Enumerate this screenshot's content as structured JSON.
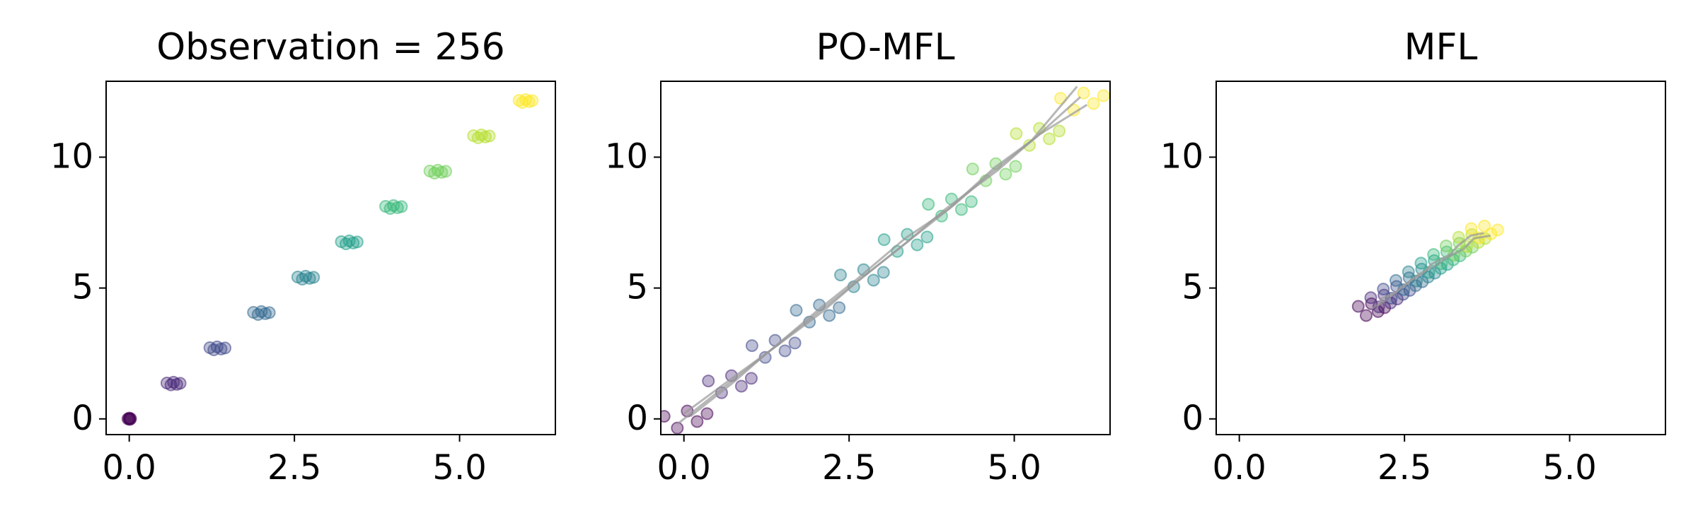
{
  "chart_data": [
    {
      "type": "scatter",
      "title": "Observation = 256",
      "xlim": [
        -0.35,
        6.45
      ],
      "ylim": [
        -0.6,
        12.9
      ],
      "xticks": [
        {
          "value": 0,
          "label": "0.0"
        },
        {
          "value": 2.5,
          "label": "2.5"
        },
        {
          "value": 5,
          "label": "5.0"
        }
      ],
      "yticks": [
        0,
        5,
        10
      ],
      "series": [
        {
          "color": "#440154",
          "x": [
            -0.02,
            0,
            0.01,
            0.02,
            0
          ],
          "y": [
            0,
            0.03,
            -0.02,
            0.01,
            0
          ]
        },
        {
          "color": "#482878",
          "x": [
            0.57,
            0.63,
            0.67,
            0.72,
            0.77
          ],
          "y": [
            1.37,
            1.3,
            1.4,
            1.32,
            1.36
          ]
        },
        {
          "color": "#3e4989",
          "x": [
            1.22,
            1.28,
            1.33,
            1.39,
            1.45
          ],
          "y": [
            2.72,
            2.64,
            2.75,
            2.67,
            2.71
          ]
        },
        {
          "color": "#31688e",
          "x": [
            1.88,
            1.95,
            2.0,
            2.06,
            2.12
          ],
          "y": [
            4.07,
            3.99,
            4.1,
            4.02,
            4.06
          ]
        },
        {
          "color": "#26828e",
          "x": [
            2.55,
            2.62,
            2.67,
            2.73,
            2.79
          ],
          "y": [
            5.42,
            5.34,
            5.45,
            5.37,
            5.41
          ]
        },
        {
          "color": "#1f9e89",
          "x": [
            3.21,
            3.28,
            3.33,
            3.39,
            3.45
          ],
          "y": [
            6.77,
            6.69,
            6.8,
            6.72,
            6.76
          ]
        },
        {
          "color": "#35b779",
          "x": [
            3.88,
            3.95,
            4.0,
            4.06,
            4.12
          ],
          "y": [
            8.12,
            8.04,
            8.15,
            8.07,
            8.11
          ]
        },
        {
          "color": "#6ece58",
          "x": [
            4.55,
            4.62,
            4.67,
            4.73,
            4.79
          ],
          "y": [
            9.47,
            9.39,
            9.5,
            9.42,
            9.46
          ]
        },
        {
          "color": "#b5de2b",
          "x": [
            5.21,
            5.28,
            5.33,
            5.39,
            5.45
          ],
          "y": [
            10.82,
            10.74,
            10.85,
            10.77,
            10.81
          ]
        },
        {
          "color": "#fde725",
          "x": [
            5.9,
            5.95,
            6.0,
            6.05,
            6.1
          ],
          "y": [
            12.17,
            12.09,
            12.2,
            12.12,
            12.16
          ]
        }
      ]
    },
    {
      "type": "scatter",
      "title": "PO-MFL",
      "xlim": [
        -0.35,
        6.45
      ],
      "ylim": [
        -0.6,
        12.9
      ],
      "xticks": [
        {
          "value": 0,
          "label": "0.0"
        },
        {
          "value": 2.5,
          "label": "2.5"
        },
        {
          "value": 5,
          "label": "5.0"
        }
      ],
      "yticks": [
        0,
        5,
        10
      ],
      "series": [
        {
          "color": "#440154",
          "x": [
            -0.3,
            -0.1,
            0.05,
            0.2,
            0.35
          ],
          "y": [
            0.1,
            -0.35,
            0.3,
            -0.1,
            0.2
          ]
        },
        {
          "color": "#482878",
          "x": [
            0.37,
            0.57,
            0.72,
            0.87,
            1.02
          ],
          "y": [
            1.45,
            1.0,
            1.65,
            1.25,
            1.55
          ]
        },
        {
          "color": "#3e4989",
          "x": [
            1.03,
            1.23,
            1.38,
            1.53,
            1.68
          ],
          "y": [
            2.8,
            2.35,
            3.0,
            2.6,
            2.9
          ]
        },
        {
          "color": "#31688e",
          "x": [
            1.7,
            1.9,
            2.05,
            2.2,
            2.35
          ],
          "y": [
            4.15,
            3.7,
            4.35,
            3.95,
            4.25
          ]
        },
        {
          "color": "#26828e",
          "x": [
            2.37,
            2.57,
            2.72,
            2.87,
            3.02
          ],
          "y": [
            5.5,
            5.05,
            5.7,
            5.3,
            5.6
          ]
        },
        {
          "color": "#1f9e89",
          "x": [
            3.03,
            3.23,
            3.38,
            3.53,
            3.68
          ],
          "y": [
            6.85,
            6.4,
            7.05,
            6.65,
            6.95
          ]
        },
        {
          "color": "#35b779",
          "x": [
            3.7,
            3.9,
            4.05,
            4.2,
            4.35
          ],
          "y": [
            8.2,
            7.75,
            8.4,
            8.0,
            8.3
          ]
        },
        {
          "color": "#6ece58",
          "x": [
            4.37,
            4.57,
            4.72,
            4.87,
            5.02
          ],
          "y": [
            9.55,
            9.1,
            9.75,
            9.35,
            9.65
          ]
        },
        {
          "color": "#b5de2b",
          "x": [
            5.03,
            5.23,
            5.38,
            5.53,
            5.68
          ],
          "y": [
            10.9,
            10.45,
            11.1,
            10.7,
            11.0
          ]
        },
        {
          "color": "#fde725",
          "x": [
            5.7,
            5.9,
            6.05,
            6.2,
            6.35
          ],
          "y": [
            12.25,
            11.8,
            12.45,
            12.05,
            12.35
          ]
        }
      ],
      "trajectories": [
        {
          "color": "#999999",
          "x": [
            0,
            0.7,
            1.3,
            2.05,
            2.6,
            3.35,
            4.0,
            4.7,
            5.3,
            6.0
          ],
          "y": [
            0.2,
            1.5,
            2.6,
            4.2,
            5.3,
            6.9,
            8.0,
            9.6,
            10.7,
            12.3
          ]
        },
        {
          "color": "#999999",
          "x": [
            -0.1,
            0.6,
            1.4,
            1.95,
            2.75,
            3.3,
            4.1,
            4.6,
            5.4,
            6.1
          ],
          "y": [
            -0.2,
            1.2,
            2.8,
            3.9,
            5.5,
            6.6,
            8.2,
            9.3,
            10.9,
            12.0
          ]
        },
        {
          "color": "#999999",
          "x": [
            0.1,
            0.75,
            1.25,
            2.1,
            2.6,
            3.4,
            3.95,
            4.75,
            5.25,
            5.95
          ],
          "y": [
            0.1,
            1.4,
            2.5,
            4.1,
            5.2,
            6.8,
            8.0,
            9.5,
            10.6,
            12.7
          ]
        }
      ]
    },
    {
      "type": "scatter",
      "title": "MFL",
      "xlim": [
        -0.35,
        6.45
      ],
      "ylim": [
        -0.6,
        12.9
      ],
      "xticks": [
        {
          "value": 0,
          "label": "0.0"
        },
        {
          "value": 2.5,
          "label": "2.5"
        },
        {
          "value": 5,
          "label": "5.0"
        }
      ],
      "yticks": [
        0,
        5,
        10
      ],
      "series": [
        {
          "color": "#440154",
          "x": [
            1.8,
            1.92,
            2.0,
            2.1,
            2.2
          ],
          "y": [
            4.3,
            3.95,
            4.4,
            4.1,
            4.25
          ]
        },
        {
          "color": "#482878",
          "x": [
            1.99,
            2.11,
            2.19,
            2.29,
            2.39
          ],
          "y": [
            4.63,
            4.28,
            4.73,
            4.43,
            4.58
          ]
        },
        {
          "color": "#3e4989",
          "x": [
            2.18,
            2.3,
            2.38,
            2.48,
            2.58
          ],
          "y": [
            4.96,
            4.61,
            5.06,
            4.76,
            4.91
          ]
        },
        {
          "color": "#31688e",
          "x": [
            2.37,
            2.49,
            2.57,
            2.67,
            2.77
          ],
          "y": [
            5.29,
            4.94,
            5.39,
            5.09,
            5.24
          ]
        },
        {
          "color": "#26828e",
          "x": [
            2.56,
            2.68,
            2.76,
            2.86,
            2.96
          ],
          "y": [
            5.62,
            5.27,
            5.72,
            5.42,
            5.57
          ]
        },
        {
          "color": "#1f9e89",
          "x": [
            2.75,
            2.87,
            2.95,
            3.05,
            3.15
          ],
          "y": [
            5.95,
            5.6,
            6.05,
            5.75,
            5.9
          ]
        },
        {
          "color": "#35b779",
          "x": [
            2.94,
            3.06,
            3.14,
            3.24,
            3.34
          ],
          "y": [
            6.28,
            5.93,
            6.38,
            6.08,
            6.23
          ]
        },
        {
          "color": "#6ece58",
          "x": [
            3.13,
            3.25,
            3.33,
            3.43,
            3.53
          ],
          "y": [
            6.61,
            6.26,
            6.71,
            6.41,
            6.56
          ]
        },
        {
          "color": "#b5de2b",
          "x": [
            3.32,
            3.44,
            3.52,
            3.62,
            3.72
          ],
          "y": [
            6.94,
            6.59,
            7.04,
            6.74,
            6.89
          ]
        },
        {
          "color": "#fde725",
          "x": [
            3.51,
            3.63,
            3.71,
            3.81,
            3.91
          ],
          "y": [
            7.27,
            6.92,
            7.37,
            7.07,
            7.22
          ]
        }
      ],
      "trajectories": [
        {
          "color": "#999999",
          "x": [
            2.0,
            2.2,
            2.4,
            2.55,
            2.8,
            2.9,
            3.2,
            3.3,
            3.5,
            3.7
          ],
          "y": [
            4.2,
            4.5,
            4.9,
            5.2,
            5.6,
            5.9,
            6.3,
            6.6,
            7.0,
            7.1
          ]
        },
        {
          "color": "#999999",
          "x": [
            2.1,
            2.15,
            2.35,
            2.6,
            2.7,
            3.0,
            3.1,
            3.4,
            3.55,
            3.8
          ],
          "y": [
            4.3,
            4.6,
            4.8,
            5.3,
            5.5,
            5.9,
            6.1,
            6.5,
            6.9,
            7.0
          ]
        }
      ]
    }
  ]
}
